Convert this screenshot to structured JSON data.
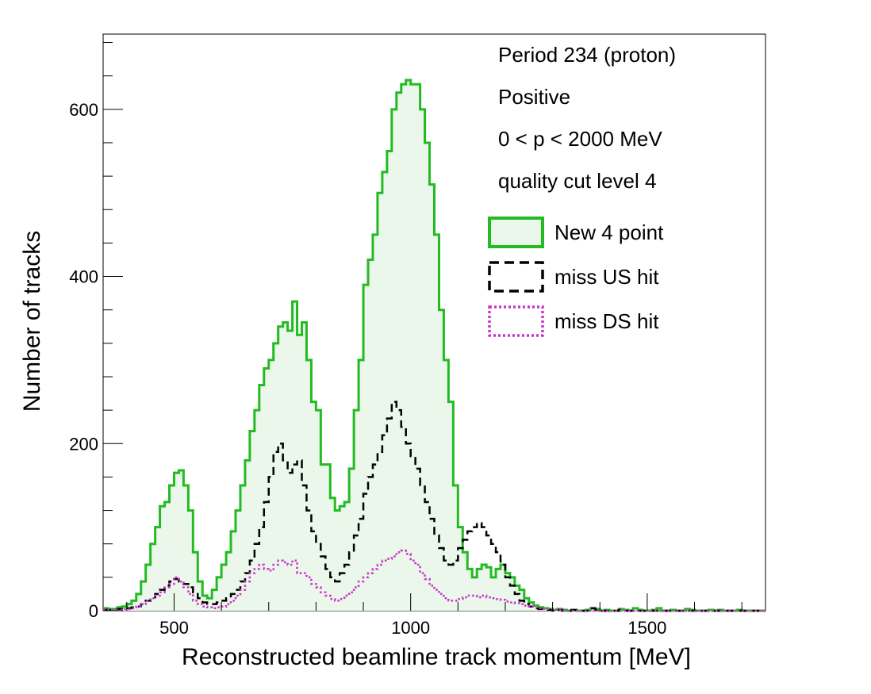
{
  "chart_data": {
    "type": "histogram-step",
    "xlabel": "Reconstructed beamline track momentum [MeV]",
    "ylabel": "Number of tracks",
    "xlim": [
      350,
      1750
    ],
    "ylim": [
      0,
      690
    ],
    "x_ticks": [
      500,
      1000,
      1500
    ],
    "y_ticks": [
      0,
      200,
      400,
      600
    ],
    "grid": false,
    "bin_width": 10,
    "x_start": 350,
    "annotations": [
      "Period 234 (proton)",
      "Positive",
      "0 < p < 2000 MeV",
      "quality cut level 4"
    ],
    "legend_position": "top-right",
    "series": [
      {
        "name": "New 4 point",
        "style": "solid-filled",
        "color": "#22bb22",
        "fill": "#eaf7ea",
        "values": [
          3,
          2,
          2,
          4,
          5,
          8,
          12,
          20,
          35,
          55,
          80,
          100,
          125,
          130,
          150,
          165,
          168,
          150,
          120,
          70,
          35,
          18,
          15,
          25,
          40,
          55,
          70,
          95,
          120,
          150,
          180,
          215,
          240,
          270,
          290,
          300,
          320,
          340,
          345,
          335,
          370,
          330,
          345,
          300,
          250,
          240,
          175,
          175,
          135,
          120,
          125,
          130,
          170,
          240,
          300,
          390,
          420,
          450,
          500,
          525,
          550,
          600,
          620,
          630,
          635,
          630,
          630,
          600,
          560,
          510,
          450,
          360,
          300,
          250,
          150,
          100,
          70,
          50,
          40,
          50,
          55,
          52,
          40,
          50,
          55,
          45,
          40,
          30,
          25,
          15,
          10,
          6,
          4,
          3,
          2,
          1,
          2,
          1,
          0,
          1,
          0,
          0,
          1,
          3,
          2,
          0,
          1,
          0,
          0,
          2,
          1,
          0,
          3,
          1,
          0,
          0,
          1,
          3,
          0,
          0,
          1,
          0,
          0,
          2,
          1,
          0,
          0,
          0,
          1,
          0,
          1,
          0,
          0,
          0,
          1,
          0,
          0,
          0,
          0,
          0
        ]
      },
      {
        "name": "miss US hit",
        "style": "dashed",
        "color": "#000000",
        "values": [
          1,
          1,
          1,
          2,
          2,
          3,
          4,
          5,
          8,
          12,
          16,
          20,
          25,
          30,
          35,
          38,
          35,
          32,
          28,
          22,
          15,
          10,
          8,
          8,
          10,
          12,
          15,
          20,
          25,
          35,
          45,
          60,
          80,
          100,
          130,
          160,
          190,
          200,
          180,
          165,
          175,
          180,
          150,
          120,
          95,
          80,
          65,
          50,
          40,
          35,
          45,
          55,
          70,
          90,
          110,
          140,
          160,
          175,
          190,
          210,
          230,
          250,
          240,
          220,
          200,
          185,
          170,
          150,
          130,
          110,
          90,
          75,
          60,
          55,
          60,
          75,
          85,
          95,
          100,
          105,
          100,
          90,
          80,
          70,
          55,
          40,
          30,
          20,
          12,
          8,
          5,
          3,
          2,
          1,
          1,
          0,
          1,
          0,
          0,
          1,
          0,
          0,
          0,
          3,
          1,
          0,
          0,
          0,
          0,
          1,
          0,
          0,
          0,
          0,
          0,
          0,
          0,
          0,
          0,
          0,
          0,
          0,
          0,
          0,
          0,
          0,
          0,
          0,
          0,
          0,
          0,
          0,
          0,
          0,
          0,
          0,
          0,
          0,
          0,
          0
        ]
      },
      {
        "name": "miss DS hit",
        "style": "dotted",
        "color": "#cc33cc",
        "values": [
          1,
          1,
          1,
          1,
          2,
          2,
          3,
          5,
          8,
          12,
          15,
          18,
          22,
          28,
          32,
          40,
          35,
          28,
          20,
          12,
          8,
          5,
          4,
          3,
          4,
          5,
          8,
          12,
          18,
          25,
          35,
          45,
          50,
          55,
          50,
          48,
          55,
          60,
          58,
          55,
          60,
          45,
          45,
          40,
          32,
          28,
          22,
          18,
          14,
          12,
          14,
          18,
          22,
          28,
          35,
          40,
          45,
          50,
          55,
          60,
          62,
          65,
          70,
          72,
          68,
          60,
          55,
          45,
          38,
          30,
          25,
          20,
          15,
          12,
          12,
          14,
          16,
          18,
          18,
          16,
          18,
          16,
          15,
          14,
          13,
          11,
          10,
          9,
          8,
          6,
          5,
          4,
          3,
          2,
          2,
          1,
          1,
          0,
          0,
          0,
          0,
          0,
          0,
          0,
          0,
          0,
          0,
          0,
          0,
          0,
          0,
          0,
          0,
          0,
          0,
          0,
          0,
          0,
          0,
          0,
          0,
          0,
          0,
          0,
          0,
          0,
          0,
          0,
          0,
          0,
          0,
          0,
          0,
          0,
          0,
          0,
          0,
          0,
          0,
          0
        ]
      }
    ]
  }
}
